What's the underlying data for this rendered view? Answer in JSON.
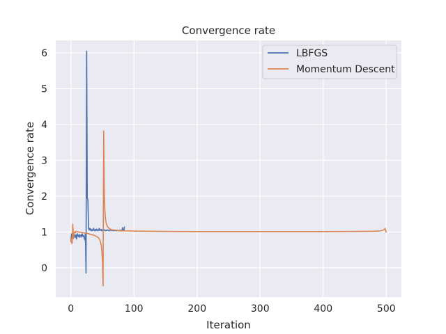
{
  "chart_data": {
    "type": "line",
    "title": "Convergence rate",
    "xlabel": "Iteration",
    "ylabel": "Convergence rate",
    "xlim": [
      -24,
      524
    ],
    "ylim": [
      -0.82,
      6.35
    ],
    "xticks": [
      0,
      100,
      200,
      300,
      400,
      500
    ],
    "yticks": [
      0,
      1,
      2,
      3,
      4,
      5,
      6
    ],
    "grid": true,
    "background": "#eaeaf2",
    "legend_position": "top-right",
    "series": [
      {
        "name": "LBFGS",
        "color": "#4c72b0",
        "x": [
          0,
          1,
          2,
          3,
          4,
          5,
          6,
          7,
          8,
          9,
          10,
          11,
          12,
          13,
          14,
          15,
          16,
          17,
          18,
          19,
          20,
          21,
          22,
          23,
          24,
          25,
          26,
          27,
          28,
          29,
          30,
          31,
          32,
          33,
          34,
          35,
          36,
          37,
          38,
          39,
          40,
          41,
          42,
          43,
          44,
          45,
          46,
          47,
          48,
          49,
          50,
          51,
          52,
          53,
          54,
          55,
          56,
          57,
          58,
          59,
          60,
          61,
          62,
          63,
          64,
          65,
          66,
          67,
          68,
          69,
          70,
          71,
          72,
          73,
          74,
          75,
          76,
          77,
          78,
          79,
          80,
          81,
          82,
          83,
          84,
          85
        ],
        "y": [
          0.72,
          0.95,
          0.78,
          0.9,
          0.82,
          0.95,
          0.88,
          0.85,
          0.92,
          0.8,
          0.95,
          0.9,
          0.87,
          0.93,
          0.85,
          0.9,
          0.92,
          0.86,
          0.95,
          0.88,
          0.9,
          0.84,
          0.78,
          0.95,
          -0.15,
          6.05,
          1.95,
          1.9,
          1.1,
          1.05,
          1.1,
          1.05,
          1.08,
          1.03,
          1.06,
          1.04,
          1.1,
          1.05,
          1.03,
          1.07,
          1.04,
          1.08,
          1.05,
          1.03,
          1.06,
          1.1,
          1.04,
          1.05,
          1.07,
          1.03,
          1.06,
          1.05,
          1.04,
          1.06,
          1.05,
          1.03,
          1.05,
          1.04,
          1.06,
          1.05,
          1.04,
          1.03,
          1.05,
          1.06,
          1.04,
          1.05,
          1.04,
          1.05,
          1.03,
          1.05,
          1.04,
          1.05,
          1.03,
          1.04,
          1.05,
          1.04,
          1.03,
          1.05,
          1.04,
          1.05,
          1.03,
          1.04,
          1.12,
          1.05,
          1.03,
          1.15
        ]
      },
      {
        "name": "Momentum Descent",
        "color": "#dd8452",
        "x": [
          0,
          1,
          2,
          3,
          4,
          5,
          6,
          7,
          8,
          9,
          10,
          12,
          14,
          16,
          18,
          20,
          22,
          24,
          26,
          28,
          30,
          32,
          34,
          36,
          38,
          40,
          42,
          44,
          46,
          48,
          49,
          50,
          51,
          52,
          53,
          54,
          55,
          56,
          57,
          58,
          60,
          62,
          65,
          70,
          75,
          80,
          90,
          100,
          120,
          150,
          200,
          250,
          300,
          350,
          400,
          450,
          480,
          490,
          495,
          497,
          498,
          499,
          500
        ],
        "y": [
          0.85,
          0.7,
          0.68,
          1.22,
          0.82,
          0.95,
          1.0,
          0.98,
          1.02,
          1.01,
          1.0,
          1.0,
          0.99,
          0.99,
          0.98,
          0.98,
          0.97,
          0.97,
          0.96,
          0.95,
          0.94,
          0.93,
          0.92,
          0.91,
          0.9,
          0.88,
          0.86,
          0.83,
          0.78,
          0.65,
          0.5,
          0.2,
          -0.5,
          3.82,
          2.0,
          1.55,
          1.35,
          1.25,
          1.19,
          1.15,
          1.11,
          1.08,
          1.06,
          1.05,
          1.04,
          1.035,
          1.03,
          1.025,
          1.02,
          1.015,
          1.01,
          1.01,
          1.01,
          1.01,
          1.01,
          1.015,
          1.02,
          1.03,
          1.05,
          1.07,
          1.1,
          1.05,
          0.98
        ]
      }
    ]
  }
}
